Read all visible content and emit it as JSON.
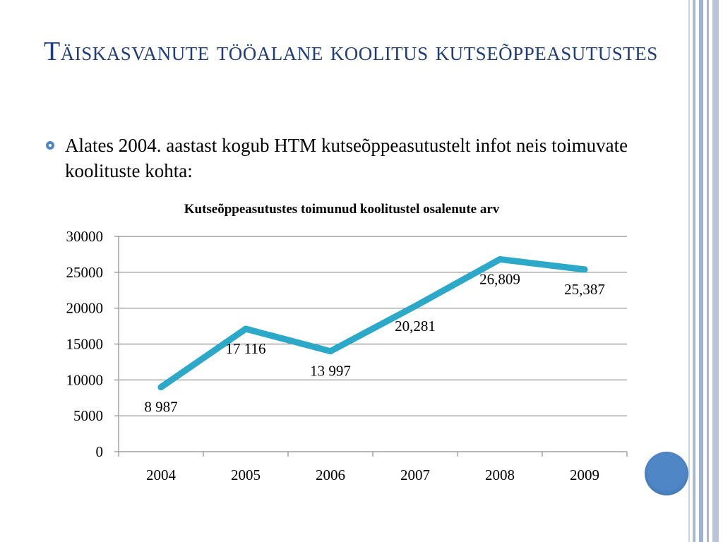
{
  "slide": {
    "title": "Täiskasvanute tööalane koolitus kutseõppeasutustes",
    "bullet": "Alates 2004. aastast kogub HTM kutseõppeasutustelt infot neis toimuvate koolituste kohta:"
  },
  "colors": {
    "title": "#1f3d7a",
    "line": "#2ca8c9",
    "accent": "#4f86c6"
  },
  "chart_data": {
    "type": "line",
    "title": "Kutseõppeasutustes toimunud koolitustel osalenute arv",
    "xlabel": "",
    "ylabel": "",
    "categories": [
      "2004",
      "2005",
      "2006",
      "2007",
      "2008",
      "2009"
    ],
    "values": [
      8987,
      17116,
      13997,
      20281,
      26809,
      25387
    ],
    "data_labels": [
      "8 987",
      "17 116",
      "13 997",
      "20,281",
      "26,809",
      "25,387"
    ],
    "ylim": [
      0,
      30000
    ],
    "yticks": [
      "0",
      "5000",
      "10000",
      "15000",
      "20000",
      "25000",
      "30000"
    ],
    "grid": true,
    "legend": "none"
  }
}
